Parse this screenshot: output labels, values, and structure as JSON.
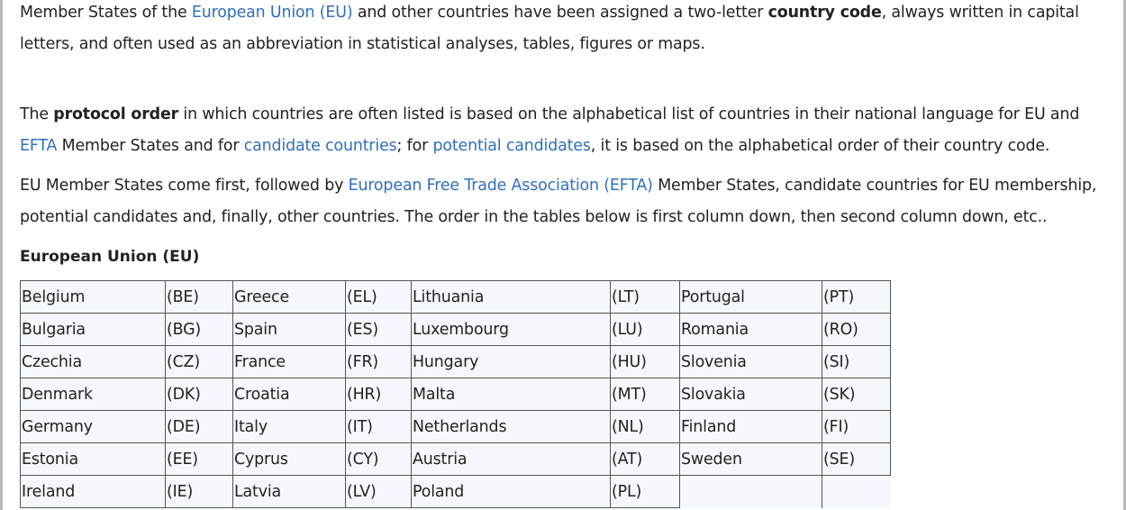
{
  "paragraphs": {
    "p1": {
      "t1": "Member States of the ",
      "link1": "European Union (EU)",
      "t2": " and other countries have been assigned a two-letter ",
      "bold1": "country code",
      "t3": ", always written in capital letters, and often used as an abbreviation in statistical analyses, tables, figures or maps."
    },
    "p2": {
      "t1": "The ",
      "bold1": "protocol order",
      "t2": " in which countries are often listed is based on the alphabetical list of countries in their national language for EU and ",
      "link1": "EFTA",
      "t3": " Member States and for ",
      "link2": "candidate countries",
      "t4": "; for ",
      "link3": "potential candidates",
      "t5": ", it is based on the alphabetical order of their country code."
    },
    "p3": {
      "t1": "EU Member States come first, followed by ",
      "link1": "European Free Trade Association (EFTA)",
      "t2": " Member States, candidate countries for EU membership, potential candidates and, finally, other countries. The order in the tables below is first column down, then second column down, etc.."
    }
  },
  "section_title": "European Union (EU)",
  "eu_table": [
    [
      "Belgium",
      "(BE)",
      "Greece",
      "(EL)",
      "Lithuania",
      "(LT)",
      "Portugal",
      "(PT)"
    ],
    [
      "Bulgaria",
      "(BG)",
      "Spain",
      "(ES)",
      "Luxembourg",
      "(LU)",
      "Romania",
      "(RO)"
    ],
    [
      "Czechia",
      "(CZ)",
      "France",
      "(FR)",
      "Hungary",
      "(HU)",
      "Slovenia",
      "(SI)"
    ],
    [
      "Denmark",
      "(DK)",
      "Croatia",
      "(HR)",
      "Malta",
      "(MT)",
      "Slovakia",
      "(SK)"
    ],
    [
      "Germany",
      "(DE)",
      "Italy",
      "(IT)",
      "Netherlands",
      "(NL)",
      "Finland",
      "(FI)"
    ],
    [
      "Estonia",
      "(EE)",
      "Cyprus",
      "(CY)",
      "Austria",
      "(AT)",
      "Sweden",
      "(SE)"
    ],
    [
      "Ireland",
      "(IE)",
      "Latvia",
      "(LV)",
      "Poland",
      "(PL)"
    ]
  ],
  "colors": {
    "link": "#2f6fbd",
    "text": "#222222",
    "cell_bg": "#f4f8fc",
    "border": "#555555"
  }
}
